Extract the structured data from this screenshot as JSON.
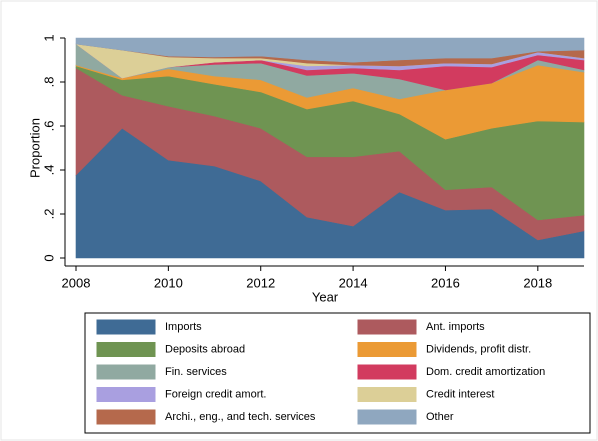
{
  "chart_data": {
    "type": "stacked_area",
    "x_label": "Year",
    "y_label": "Proportion",
    "x": [
      2008,
      2009,
      2010,
      2011,
      2012,
      2013,
      2014,
      2015,
      2016,
      2017,
      2018,
      2019
    ],
    "xlim": [
      2008,
      2019
    ],
    "xticks": [
      2008,
      2010,
      2012,
      2014,
      2016,
      2018
    ],
    "ylim": [
      0,
      1
    ],
    "yticks": [
      0,
      {
        "value": 0.2,
        "label": ".2"
      },
      {
        "value": 0.4,
        "label": ".4"
      },
      {
        "value": 0.6,
        "label": ".6"
      },
      {
        "value": 0.8,
        "label": ".8"
      },
      1
    ],
    "series": [
      {
        "name": "Imports",
        "color": "#3f6b95",
        "values": [
          0.377,
          0.59,
          0.445,
          0.418,
          0.35,
          0.186,
          0.145,
          0.3,
          0.218,
          0.223,
          0.082,
          0.123
        ]
      },
      {
        "name": "Ant. imports",
        "color": "#ad5a5e",
        "values": [
          0.487,
          0.15,
          0.245,
          0.227,
          0.24,
          0.274,
          0.315,
          0.186,
          0.092,
          0.1,
          0.091,
          0.072
        ]
      },
      {
        "name": "Deposits abroad",
        "color": "#6f9452",
        "values": [
          0.009,
          0.07,
          0.137,
          0.145,
          0.165,
          0.217,
          0.254,
          0.169,
          0.23,
          0.267,
          0.45,
          0.423
        ]
      },
      {
        "name": "Dividends, profit distr.",
        "color": "#eb9a35",
        "values": [
          0.004,
          0.008,
          0.033,
          0.037,
          0.055,
          0.053,
          0.059,
          0.068,
          0.224,
          0.205,
          0.254,
          0.227
        ]
      },
      {
        "name": "Fin. services",
        "color": "#90a9a1",
        "values": [
          0.096,
          0,
          0.008,
          0.053,
          0.076,
          0.1,
          0.067,
          0.091,
          0,
          0,
          0.023,
          0.01
        ]
      },
      {
        "name": "Dom. credit amortization",
        "color": "#d23b5f",
        "values": [
          0,
          0,
          0,
          0.01,
          0.014,
          0.025,
          0.024,
          0.041,
          0.109,
          0.073,
          0.023,
          0.045
        ]
      },
      {
        "name": "Foreign credit amort.",
        "color": "#a99fe0",
        "values": [
          0,
          0,
          0,
          0,
          0,
          0.018,
          0.013,
          0.018,
          0.013,
          0.014,
          0.013,
          0.009
        ]
      },
      {
        "name": "Credit interest",
        "color": "#dccf97",
        "values": [
          0,
          0.127,
          0.046,
          0.019,
          0.009,
          0.013,
          0,
          0,
          0,
          0,
          0,
          0
        ]
      },
      {
        "name": "Archi., eng., and tech. services",
        "color": "#b5694c",
        "values": [
          0,
          0,
          0.004,
          0.005,
          0.009,
          0.014,
          0.013,
          0.027,
          0.023,
          0.027,
          0.004,
          0.036
        ]
      },
      {
        "name": "Other",
        "color": "#8fa7bf",
        "values": [
          0.027,
          0.055,
          0.082,
          0.086,
          0.082,
          0.1,
          0.11,
          0.1,
          0.091,
          0.091,
          0.06,
          0.055
        ]
      }
    ]
  }
}
